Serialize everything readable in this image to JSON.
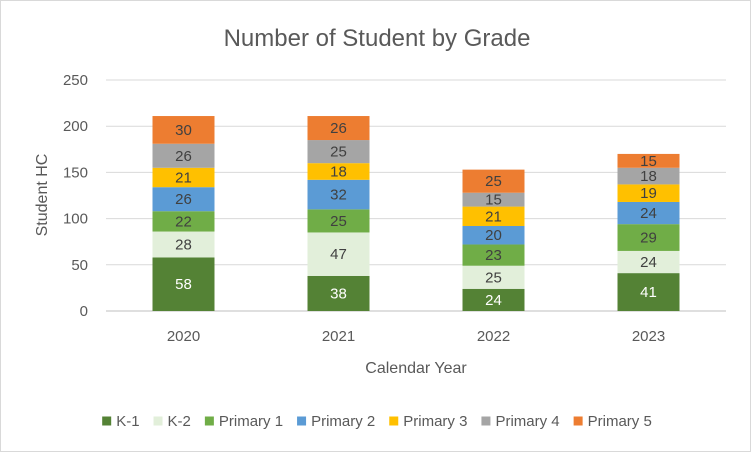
{
  "chart_data": {
    "type": "bar",
    "stacked": true,
    "title": "Number of Student by Grade",
    "xlabel": "Calendar Year",
    "ylabel": "Student  HC",
    "categories": [
      "2020",
      "2021",
      "2022",
      "2023"
    ],
    "ylim": [
      0,
      250
    ],
    "yticks": [
      "0",
      "50",
      "100",
      "150",
      "200",
      "250"
    ],
    "grid": true,
    "legend_position": "bottom",
    "series": [
      {
        "name": "K-1",
        "values": [
          58,
          38,
          24,
          41
        ],
        "color": "#548235",
        "label_color": "#ffffff"
      },
      {
        "name": "K-2",
        "values": [
          28,
          47,
          25,
          24
        ],
        "color": "#e2efda",
        "label_color": "#404040"
      },
      {
        "name": "Primary 1",
        "values": [
          22,
          25,
          23,
          29
        ],
        "color": "#70ad47",
        "label_color": "#404040"
      },
      {
        "name": "Primary 2",
        "values": [
          26,
          32,
          20,
          24
        ],
        "color": "#5b9bd5",
        "label_color": "#404040"
      },
      {
        "name": "Primary 3",
        "values": [
          21,
          18,
          21,
          19
        ],
        "color": "#ffc000",
        "label_color": "#404040"
      },
      {
        "name": "Primary 4",
        "values": [
          26,
          25,
          15,
          18
        ],
        "color": "#a5a5a5",
        "label_color": "#404040"
      },
      {
        "name": "Primary 5",
        "values": [
          30,
          26,
          25,
          15
        ],
        "color": "#ed7d31",
        "label_color": "#404040"
      }
    ]
  }
}
